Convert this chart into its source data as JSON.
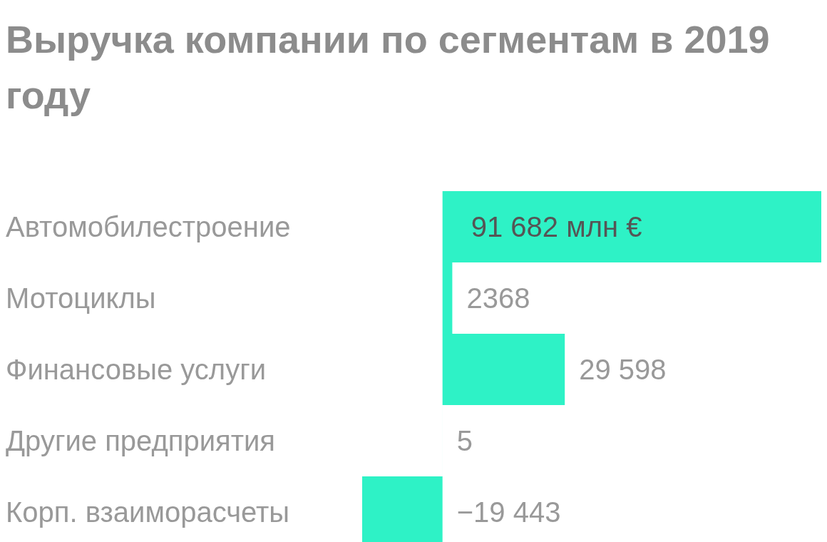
{
  "chart_data": {
    "type": "bar",
    "title": "Выручка компании по сегментам в 2019 году",
    "orientation": "horizontal",
    "categories": [
      "Автомобилестроение",
      "Мотоциклы",
      "Финансовые услуги",
      "Другие предприятия",
      "Корп. взаиморасчеты"
    ],
    "values": [
      91682,
      2368,
      29598,
      5,
      -19443
    ],
    "value_labels": [
      "91 682 млн €",
      "2368",
      "29 598",
      "5",
      "−19 443"
    ],
    "color": "#2ef2c6"
  }
}
